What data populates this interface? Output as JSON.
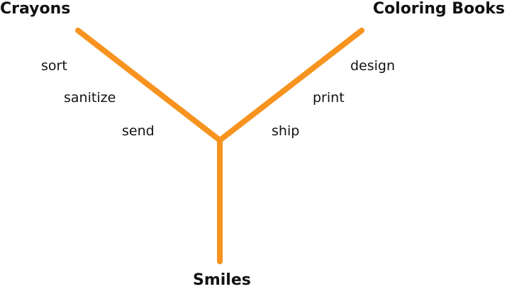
{
  "colors": {
    "branch": "#f7931e",
    "text": "#111111",
    "background": "#ffffff"
  },
  "nodes": {
    "crayons": "Crayons",
    "coloring_books": "Coloring Books",
    "smiles": "Smiles"
  },
  "crayons_steps": [
    "sort",
    "sanitize",
    "send"
  ],
  "coloring_books_steps": [
    "design",
    "print",
    "ship"
  ]
}
